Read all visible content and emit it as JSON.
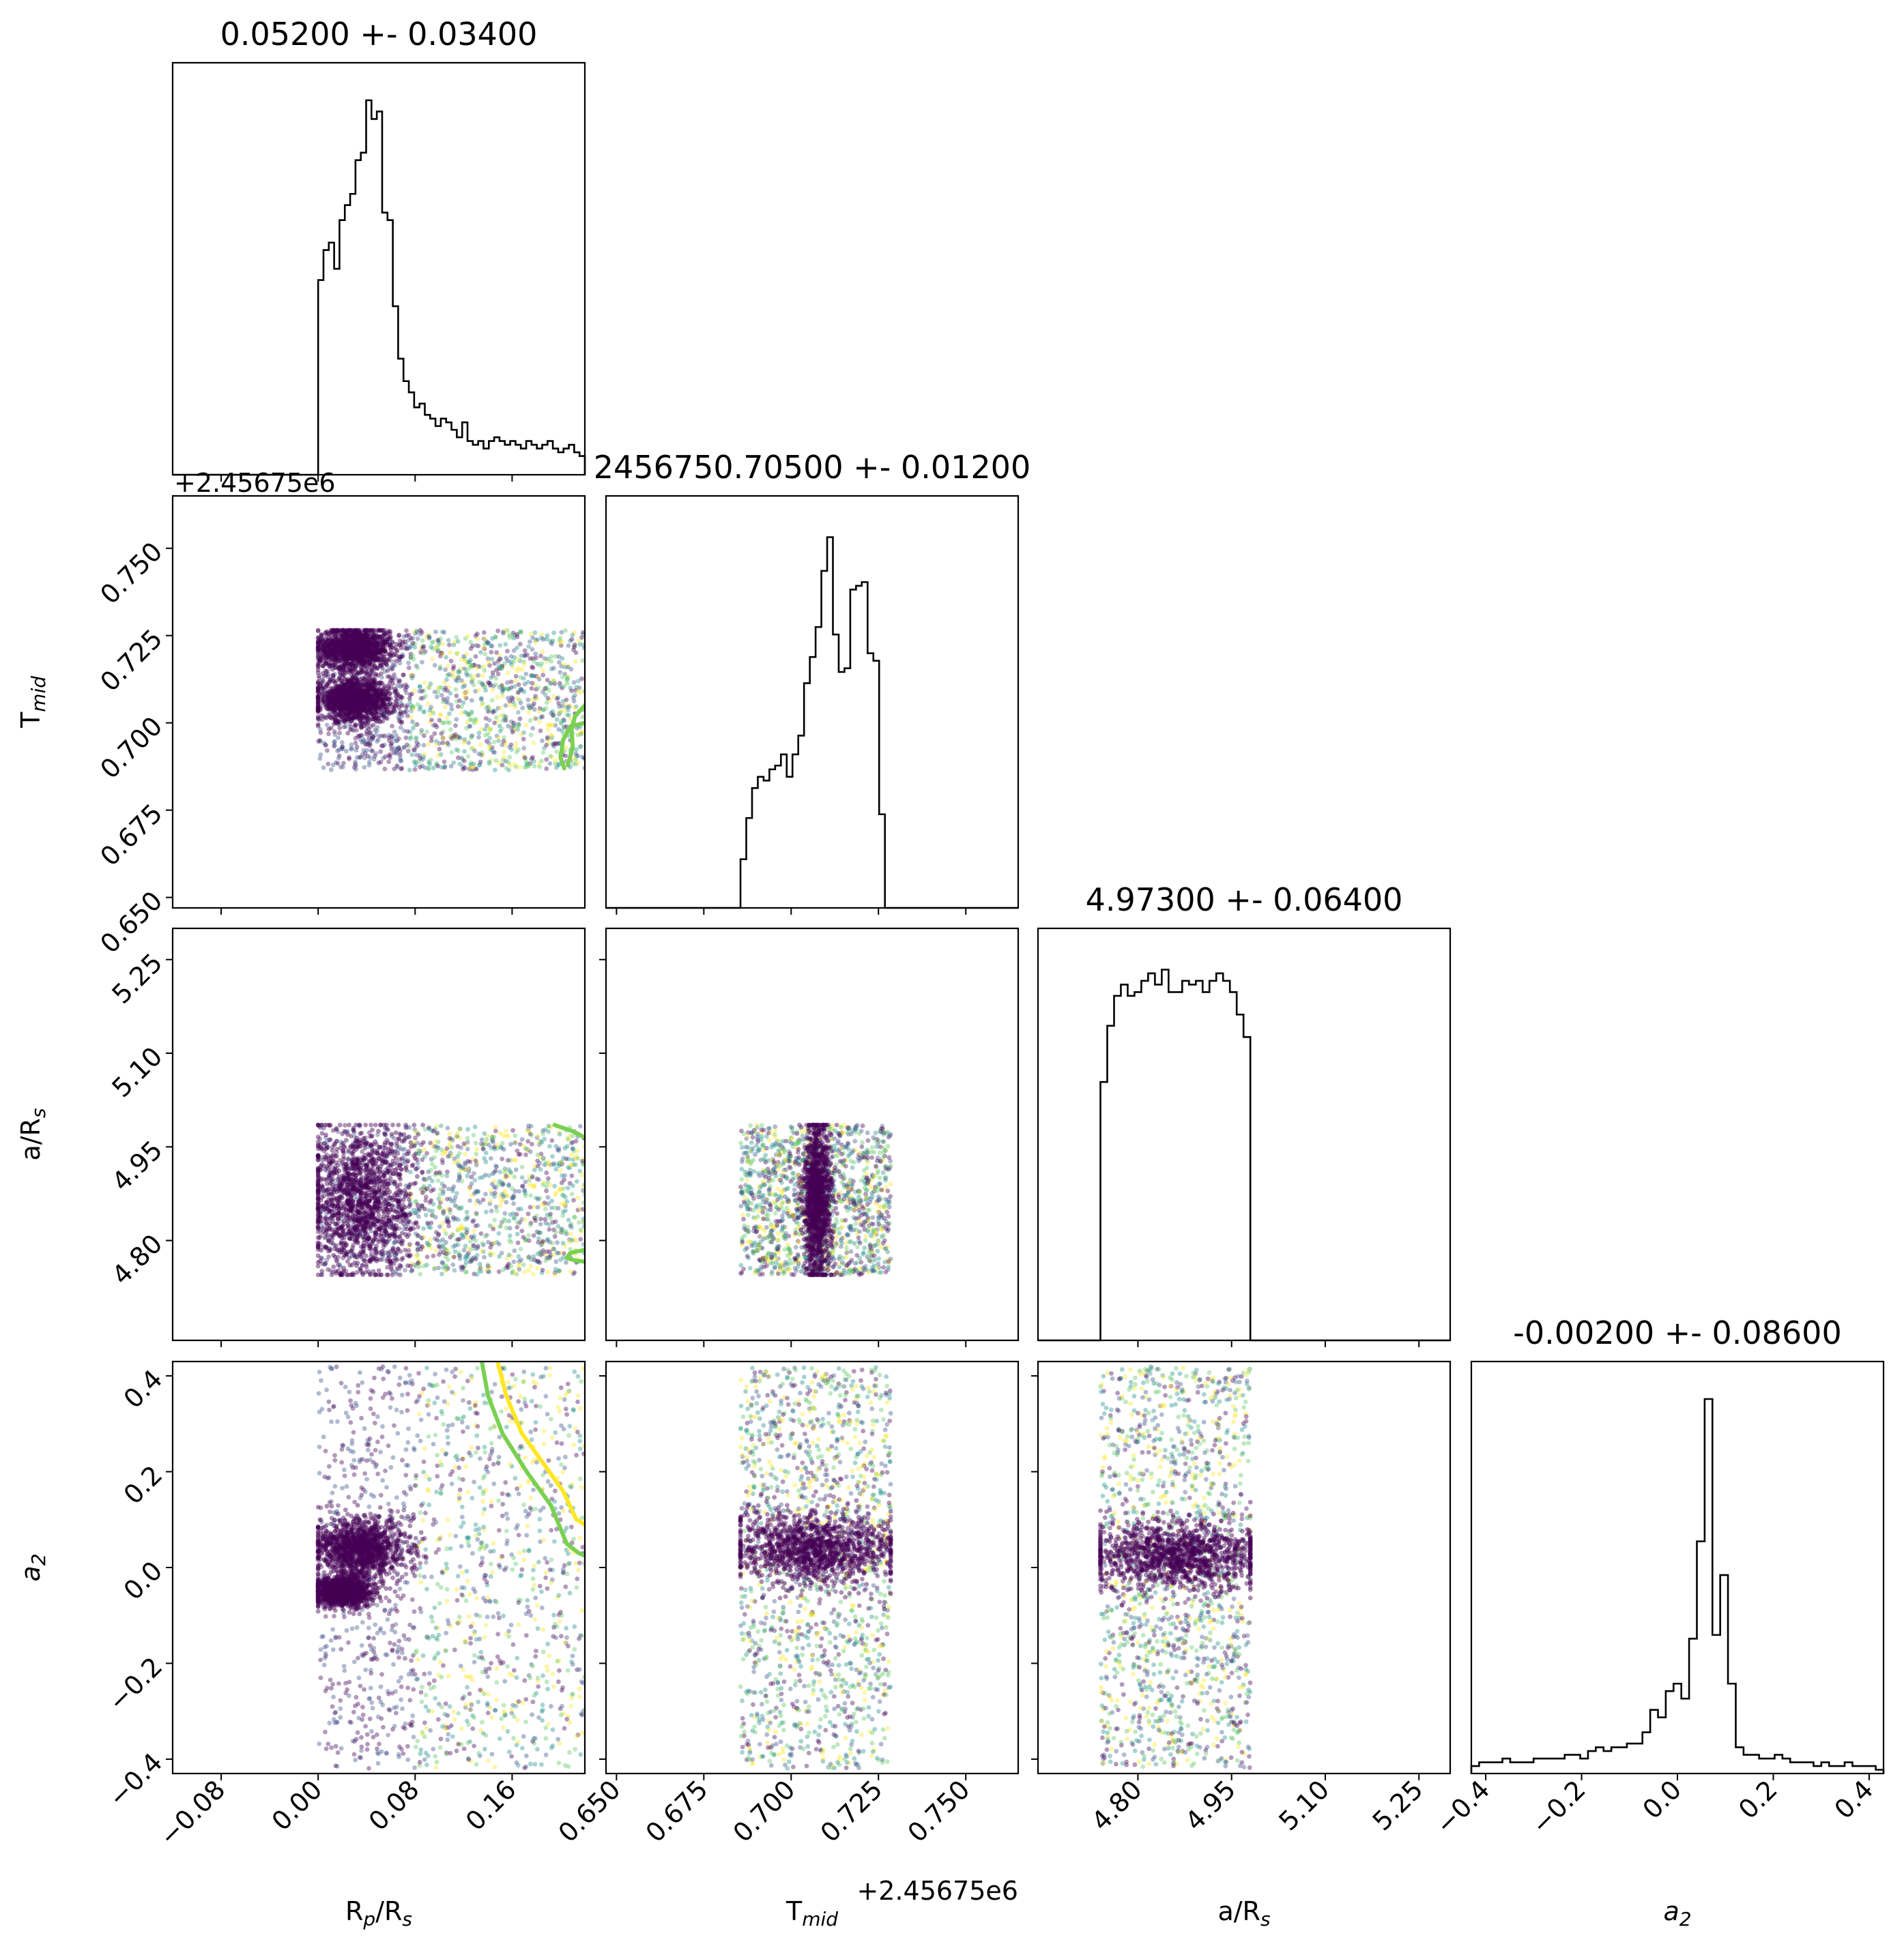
{
  "chart_data": {
    "type": "corner",
    "parameters": [
      {
        "id": "rp",
        "label": "R_p/R_s",
        "label_main": "R",
        "label_sub": "p",
        "label_tail": "/R",
        "label_sub2": "s",
        "title": "0.05200 +- 0.03400",
        "range": [
          -0.12,
          0.22
        ],
        "ticks": [
          -0.08,
          0.0,
          0.08,
          0.16
        ],
        "tick_labels": [
          "−0.08",
          "0.00",
          "0.08",
          "0.16"
        ],
        "hist": {
          "x0": 0.0,
          "x1": 0.22,
          "counts": [
            0.52,
            0.6,
            0.62,
            0.55,
            0.68,
            0.72,
            0.75,
            0.84,
            0.86,
            1.0,
            0.95,
            0.97,
            0.7,
            0.68,
            0.45,
            0.31,
            0.25,
            0.22,
            0.18,
            0.19,
            0.16,
            0.15,
            0.13,
            0.15,
            0.14,
            0.12,
            0.1,
            0.14,
            0.09,
            0.08,
            0.09,
            0.07,
            0.09,
            0.1,
            0.09,
            0.08,
            0.09,
            0.08,
            0.07,
            0.09,
            0.08,
            0.07,
            0.08,
            0.09,
            0.07,
            0.06,
            0.07,
            0.08,
            0.06,
            0.05
          ]
        }
      },
      {
        "id": "tmid",
        "label": "T_mid",
        "label_main": "T",
        "label_sub": "mid",
        "label_tail": "",
        "label_sub2": "",
        "title": "2456750.70500 +- 0.01200",
        "range": [
          0.647,
          0.765
        ],
        "ticks": [
          0.65,
          0.675,
          0.7,
          0.725,
          0.75
        ],
        "tick_labels": [
          "0.650",
          "0.675",
          "0.700",
          "0.725",
          "0.750"
        ],
        "offset_text": "+2.45675e6",
        "hist": {
          "x0": 0.6855,
          "x1": 0.7285,
          "counts": [
            0.13,
            0.24,
            0.32,
            0.35,
            0.34,
            0.37,
            0.38,
            0.41,
            0.35,
            0.41,
            0.46,
            0.6,
            0.67,
            0.75,
            0.9,
            0.99,
            0.73,
            0.63,
            0.64,
            0.85,
            0.86,
            0.87,
            0.68,
            0.66,
            0.25,
            0.0
          ]
        }
      },
      {
        "id": "ars",
        "label": "a/R_s",
        "label_main": "a/R",
        "label_sub": "s",
        "label_tail": "",
        "label_sub2": "",
        "title": "4.97300 +- 0.06400",
        "range": [
          4.64,
          5.3
        ],
        "ticks": [
          4.8,
          4.95,
          5.1,
          5.25
        ],
        "tick_labels": [
          "4.80",
          "4.95",
          "5.10",
          "5.25"
        ],
        "hist": {
          "x0": 4.74,
          "x1": 4.98,
          "counts": [
            0.69,
            0.84,
            0.92,
            0.95,
            0.92,
            0.93,
            0.96,
            0.98,
            0.95,
            0.99,
            0.93,
            0.93,
            0.96,
            0.95,
            0.96,
            0.93,
            0.96,
            0.98,
            0.96,
            0.93,
            0.87,
            0.81
          ]
        }
      },
      {
        "id": "a2",
        "label": "a_2",
        "label_main": "a",
        "label_sub": "2",
        "label_tail": "",
        "label_sub2": "",
        "title": "-0.00200 +- 0.08600",
        "range": [
          -0.43,
          0.43
        ],
        "ticks": [
          -0.4,
          -0.2,
          0.0,
          0.2,
          0.4
        ],
        "tick_labels": [
          "−0.4",
          "−0.2",
          "0.0",
          "0.2",
          "0.4"
        ],
        "hist": {
          "x0": -0.43,
          "x1": 0.43,
          "counts": [
            0.02,
            0.03,
            0.03,
            0.03,
            0.04,
            0.03,
            0.03,
            0.03,
            0.04,
            0.04,
            0.04,
            0.04,
            0.05,
            0.05,
            0.04,
            0.06,
            0.07,
            0.06,
            0.07,
            0.07,
            0.08,
            0.08,
            0.11,
            0.17,
            0.15,
            0.22,
            0.24,
            0.2,
            0.36,
            0.62,
            1.0,
            0.37,
            0.53,
            0.24,
            0.07,
            0.05,
            0.05,
            0.04,
            0.04,
            0.05,
            0.04,
            0.03,
            0.03,
            0.03,
            0.02,
            0.03,
            0.02,
            0.02,
            0.03,
            0.02,
            0.02,
            0.02,
            0.01
          ]
        }
      }
    ],
    "offset_y_label": "+2.45675e6",
    "scatter_colormap": [
      "#440154",
      "#3b528b",
      "#21918c",
      "#5ec962",
      "#fde725"
    ],
    "contour_colors": [
      "#7ad151",
      "#fde725"
    ],
    "pairs": [
      {
        "x": "rp",
        "y": "tmid",
        "x_ranges": [
          [
            0.0,
            0.22
          ]
        ],
        "y_ranges": [
          [
            0.6865,
            0.7265
          ]
        ],
        "dense": [
          {
            "cx": 0.03,
            "cy": 0.7215,
            "sx": 0.015,
            "sy": 0.003
          },
          {
            "cx": 0.03,
            "cy": 0.7065,
            "sx": 0.015,
            "sy": 0.003
          }
        ],
        "dense_x_max": 0.075,
        "contours": [
          {
            "color": "#7ad151",
            "points": [
              [
                0.22,
                0.7
              ],
              [
                0.208,
                0.699
              ],
              [
                0.202,
                0.695
              ],
              [
                0.2,
                0.69
              ],
              [
                0.203,
                0.687
              ]
            ]
          },
          {
            "color": "#7ad151",
            "points": [
              [
                0.22,
                0.705
              ],
              [
                0.212,
                0.702
              ],
              [
                0.209,
                0.698
              ],
              [
                0.21,
                0.693
              ],
              [
                0.206,
                0.688
              ]
            ]
          }
        ]
      },
      {
        "x": "rp",
        "y": "ars",
        "x_ranges": [
          [
            0.0,
            0.22
          ]
        ],
        "y_ranges": [
          [
            4.745,
            4.985
          ]
        ],
        "dense": [
          {
            "cx": 0.035,
            "cy": 4.865,
            "sx": 0.022,
            "sy": 0.06
          }
        ],
        "dense_x_max": 0.075,
        "contours": [
          {
            "color": "#7ad151",
            "points": [
              [
                0.22,
                4.965
              ],
              [
                0.21,
                4.975
              ],
              [
                0.195,
                4.985
              ]
            ]
          },
          {
            "color": "#7ad151",
            "points": [
              [
                0.22,
                4.785
              ],
              [
                0.208,
                4.78
              ],
              [
                0.205,
                4.772
              ],
              [
                0.212,
                4.768
              ],
              [
                0.22,
                4.766
              ]
            ]
          }
        ]
      },
      {
        "x": "tmid",
        "y": "ars",
        "x_ranges": [
          [
            0.6855,
            0.7285
          ]
        ],
        "y_ranges": [
          [
            4.745,
            4.985
          ]
        ],
        "dense": [
          {
            "cx": 0.7075,
            "cy": 4.865,
            "sx": 0.002,
            "sy": 0.06
          }
        ],
        "dense_x_max": null,
        "contours": []
      },
      {
        "x": "rp",
        "y": "a2",
        "x_ranges": [
          [
            0.0,
            0.22
          ]
        ],
        "y_ranges": [
          [
            -0.42,
            0.42
          ]
        ],
        "dense": [
          {
            "cx": 0.035,
            "cy": 0.04,
            "sx": 0.018,
            "sy": 0.03
          },
          {
            "cx": 0.02,
            "cy": -0.05,
            "sx": 0.012,
            "sy": 0.015
          }
        ],
        "dense_x_max": 0.08,
        "contours": [
          {
            "color": "#7ad151",
            "points": [
              [
                0.135,
                0.43
              ],
              [
                0.14,
                0.36
              ],
              [
                0.152,
                0.28
              ],
              [
                0.172,
                0.2
              ],
              [
                0.192,
                0.13
              ],
              [
                0.205,
                0.05
              ],
              [
                0.215,
                0.03
              ],
              [
                0.22,
                0.025
              ]
            ]
          },
          {
            "color": "#fde725",
            "points": [
              [
                0.148,
                0.43
              ],
              [
                0.155,
                0.36
              ],
              [
                0.168,
                0.28
              ],
              [
                0.185,
                0.22
              ],
              [
                0.202,
                0.16
              ],
              [
                0.213,
                0.1
              ],
              [
                0.22,
                0.09
              ]
            ]
          }
        ]
      },
      {
        "x": "tmid",
        "y": "a2",
        "x_ranges": [
          [
            0.6855,
            0.7285
          ]
        ],
        "y_ranges": [
          [
            -0.42,
            0.42
          ]
        ],
        "dense": [
          {
            "cx": 0.707,
            "cy": 0.04,
            "sx": 0.012,
            "sy": 0.035
          }
        ],
        "dense_x_max": null,
        "contours": []
      },
      {
        "x": "ars",
        "y": "a2",
        "x_ranges": [
          [
            4.74,
            4.98
          ]
        ],
        "y_ranges": [
          [
            -0.42,
            0.42
          ]
        ],
        "dense": [
          {
            "cx": 4.86,
            "cy": 0.025,
            "sx": 0.07,
            "sy": 0.035
          }
        ],
        "dense_x_max": null,
        "contours": []
      }
    ]
  }
}
